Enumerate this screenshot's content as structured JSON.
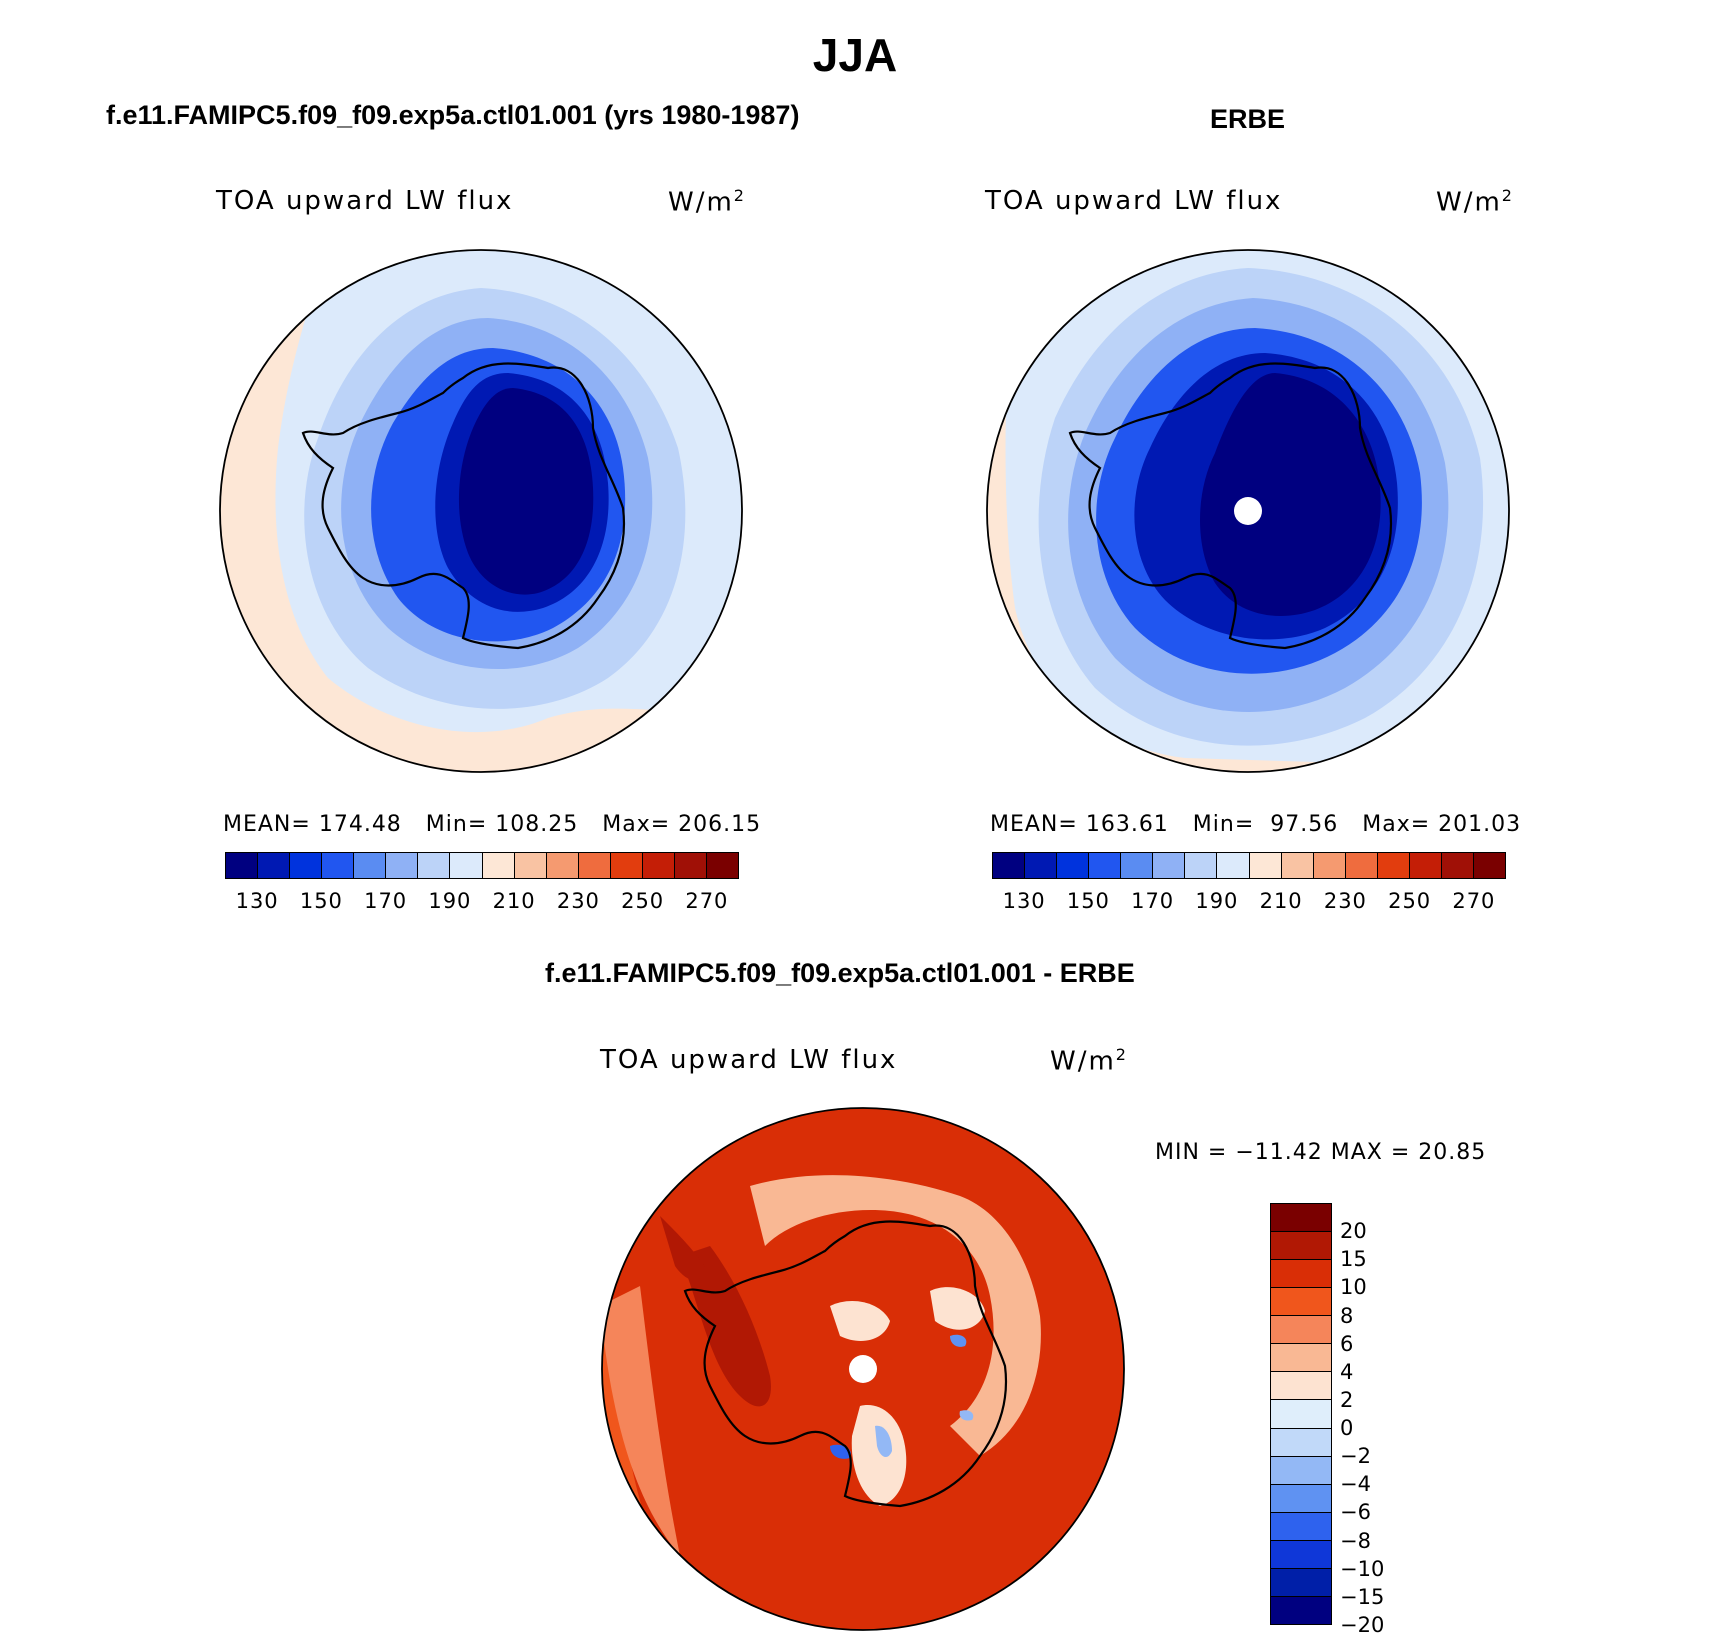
{
  "figure": {
    "title": "JJA"
  },
  "panels": {
    "model": {
      "title": "f.e11.FAMIPC5.f09_f09.exp5a.ctl01.001 (yrs 1980-1987)",
      "variable": "TOA upward LW flux",
      "units": "W/m",
      "units_exp": "2",
      "stats": {
        "mean_label": "MEAN=",
        "mean": "174.48",
        "min_label": "Min=",
        "min": "108.25",
        "max_label": "Max=",
        "max": "206.15"
      },
      "colorbar": {
        "colors": [
          "#000080",
          "#0019b3",
          "#0033dd",
          "#2156f0",
          "#5a8cf2",
          "#8fb1f5",
          "#bcd3f8",
          "#dceafb",
          "#fde7d6",
          "#f9c3a3",
          "#f59a70",
          "#ef6c3e",
          "#e23d0e",
          "#c41e06",
          "#a01006",
          "#7a0000"
        ],
        "ticks": [
          "130",
          "150",
          "170",
          "190",
          "210",
          "230",
          "250",
          "270"
        ]
      }
    },
    "obs": {
      "title": "ERBE",
      "variable": "TOA upward LW flux",
      "units": "W/m",
      "units_exp": "2",
      "stats": {
        "mean_label": "MEAN=",
        "mean": "163.61",
        "min_label": "Min=",
        "min": "97.56",
        "max_label": "Max=",
        "max": "201.03"
      },
      "colorbar": {
        "colors": [
          "#000080",
          "#0019b3",
          "#0033dd",
          "#2156f0",
          "#5a8cf2",
          "#8fb1f5",
          "#bcd3f8",
          "#dceafb",
          "#fde7d6",
          "#f9c3a3",
          "#f59a70",
          "#ef6c3e",
          "#e23d0e",
          "#c41e06",
          "#a01006",
          "#7a0000"
        ],
        "ticks": [
          "130",
          "150",
          "170",
          "190",
          "210",
          "230",
          "250",
          "270"
        ]
      }
    },
    "diff": {
      "title": "f.e11.FAMIPC5.f09_f09.exp5a.ctl01.001 - ERBE",
      "variable": "TOA upward LW flux",
      "units": "W/m",
      "units_exp": "2",
      "range_text": "MIN = −11.42 MAX =  20.85",
      "colorbar": {
        "colors": [
          "#7a0000",
          "#b11804",
          "#d92e06",
          "#f0561c",
          "#f5855a",
          "#f9b894",
          "#fde3d1",
          "#dfeefb",
          "#c1d9f9",
          "#93b8f5",
          "#5f92f2",
          "#2e62ee",
          "#0f37d8",
          "#001fa8",
          "#000080"
        ],
        "ticks": [
          "20",
          "15",
          "10",
          "8",
          "6",
          "4",
          "2",
          "0",
          "−2",
          "−4",
          "−6",
          "−8",
          "−10",
          "−15",
          "−20"
        ]
      }
    }
  },
  "colors": {
    "deep_blue": "#000080",
    "mid_blue": "#2156f0",
    "light_blue": "#dceafb",
    "cream": "#fde7d6",
    "orange_red": "#e23d0e",
    "coastline": "#000000"
  }
}
